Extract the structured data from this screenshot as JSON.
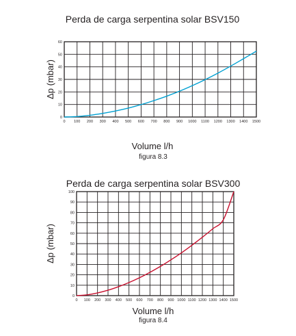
{
  "chart_data": [
    {
      "type": "line",
      "title": "Perda de carga serpentina solar BSV150",
      "xlabel": "Volume l/h",
      "ylabel": "Δp (mbar)",
      "caption": "figura 8.3",
      "xlim": [
        0,
        1500
      ],
      "ylim": [
        0,
        60
      ],
      "x_ticks": [
        0,
        100,
        200,
        300,
        400,
        500,
        600,
        700,
        800,
        900,
        1000,
        1100,
        1200,
        1300,
        1400,
        1500
      ],
      "y_ticks": [
        0,
        10,
        20,
        30,
        40,
        50,
        60
      ],
      "grid": true,
      "series": [
        {
          "color": "#00a0d2",
          "x": [
            0,
            100,
            200,
            300,
            400,
            500,
            600,
            700,
            800,
            900,
            1000,
            1100,
            1200,
            1300,
            1400,
            1500
          ],
          "y": [
            0,
            0.4,
            1.4,
            2.9,
            4.8,
            7.1,
            9.9,
            13.1,
            16.6,
            20.6,
            25,
            29.8,
            35,
            40.6,
            46.5,
            52.5
          ]
        }
      ]
    },
    {
      "type": "line",
      "title": "Perda de carga serpentina solar BSV300",
      "xlabel": "Volume l/h",
      "ylabel": "Δp (mbar)",
      "caption": "figura 8.4",
      "xlim": [
        0,
        1500
      ],
      "ylim": [
        0,
        100
      ],
      "x_ticks": [
        0,
        100,
        200,
        300,
        400,
        500,
        600,
        700,
        800,
        900,
        1000,
        1100,
        1200,
        1300,
        1400,
        1500
      ],
      "y_ticks": [
        0,
        10,
        20,
        30,
        40,
        50,
        60,
        70,
        80,
        90,
        100
      ],
      "grid": true,
      "series": [
        {
          "color": "#c8102e",
          "x": [
            0,
            100,
            200,
            300,
            400,
            500,
            600,
            700,
            800,
            900,
            1000,
            1100,
            1200,
            1300,
            1400,
            1500
          ],
          "y": [
            0,
            0.8,
            2.6,
            5.2,
            8.6,
            12.6,
            17.2,
            22.4,
            28.1,
            34.4,
            41.1,
            48.4,
            56.1,
            64.3,
            72.9,
            100
          ]
        }
      ]
    }
  ]
}
